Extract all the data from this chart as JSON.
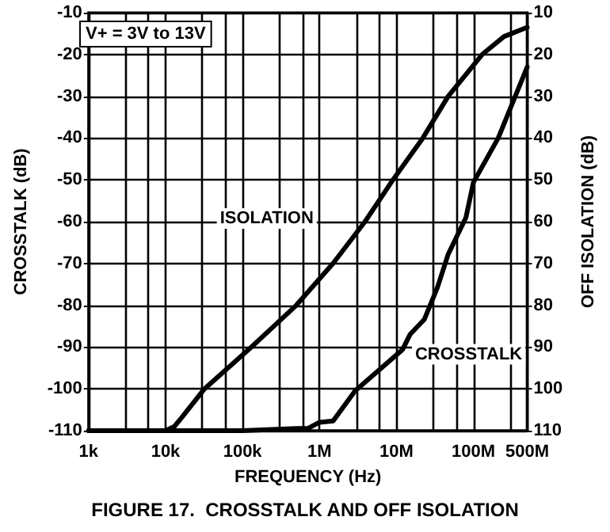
{
  "chart_data": {
    "type": "line",
    "title": "FIGURE 17.  CROSSTALK AND OFF ISOLATION",
    "xlabel": "FREQUENCY (Hz)",
    "ylabel": "CROSSTALK (dB)",
    "y2label": "OFF ISOLATION (dB)",
    "annotations": [
      "V+ = 3V to 13V"
    ],
    "log": "x",
    "grid": true,
    "marker": "none",
    "line_style": "solid",
    "xlim": [
      1000,
      500000000
    ],
    "xticks": [
      {
        "value": 1000,
        "label": "1k"
      },
      {
        "value": 3000,
        "label": null
      },
      {
        "value": 6000,
        "label": null
      },
      {
        "value": 10000,
        "label": "10k"
      },
      {
        "value": 30000,
        "label": null
      },
      {
        "value": 60000,
        "label": null
      },
      {
        "value": 100000,
        "label": "100k"
      },
      {
        "value": 300000,
        "label": null
      },
      {
        "value": 600000,
        "label": null
      },
      {
        "value": 1000000,
        "label": "1M"
      },
      {
        "value": 3000000,
        "label": null
      },
      {
        "value": 6000000,
        "label": null
      },
      {
        "value": 10000000,
        "label": "10M"
      },
      {
        "value": 30000000,
        "label": null
      },
      {
        "value": 60000000,
        "label": null
      },
      {
        "value": 100000000,
        "label": "100M"
      },
      {
        "value": 300000000,
        "label": null
      },
      {
        "value": 500000000,
        "label": "500M"
      }
    ],
    "ylim": [
      -110,
      -10
    ],
    "yticks": [
      -110,
      -100,
      -90,
      -80,
      -70,
      -60,
      -50,
      -40,
      -30,
      -20,
      -10
    ],
    "y2lim": [
      110,
      10
    ],
    "y2ticks": [
      110,
      100,
      90,
      80,
      70,
      60,
      50,
      40,
      30,
      20,
      10
    ],
    "series": [
      {
        "name": "ISOLATION",
        "color": "#000000",
        "x": [
          1000,
          5000,
          10000,
          13000,
          16000,
          32000,
          130000,
          500000,
          1500000,
          3900000,
          9000000,
          22000000,
          47000000,
          130000000,
          250000000,
          500000000
        ],
        "values": [
          -110,
          -110,
          -110,
          -109,
          -107,
          -100,
          -90,
          -80,
          -70,
          -60,
          -50,
          -40,
          -30,
          -20,
          -15.7,
          -13.5
        ]
      },
      {
        "name": "CROSSTALK",
        "color": "#000000",
        "x": [
          1000,
          100000,
          500000,
          700000,
          1000000,
          1500000,
          2900000,
          12000000,
          15000000,
          23000000,
          34000000,
          47000000,
          80000000,
          100000000,
          210000000,
          500000000
        ],
        "values": [
          -110,
          -110,
          -109.5,
          -109.5,
          -108,
          -107.7,
          -100.5,
          -90.6,
          -87,
          -83.4,
          -75.8,
          -67.8,
          -59,
          -50.6,
          -40,
          -23
        ]
      }
    ]
  }
}
